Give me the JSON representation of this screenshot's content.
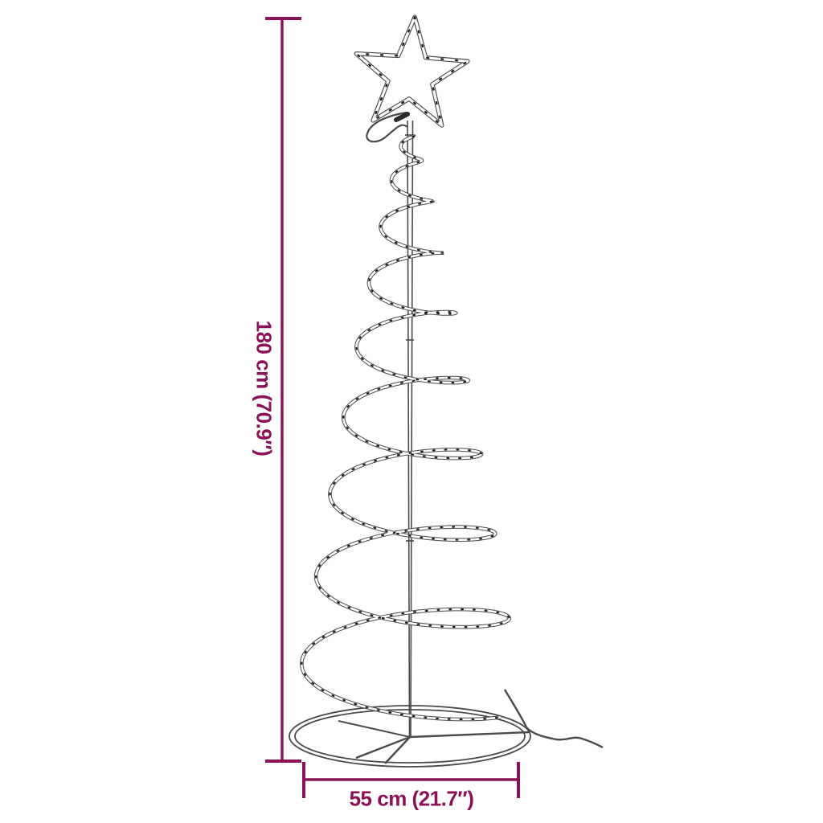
{
  "dimensions": {
    "height_label": "180 cm (70.9″)",
    "width_label": "55 cm (21.7″)"
  },
  "colors": {
    "dimension": "#8A1157",
    "line": "#4A4A4A",
    "led_dot": "#1F1F1F",
    "background": "#FFFFFF"
  },
  "icons": {
    "star_topper": "star-outline-icon",
    "light_rope": "spiral-rope-icon",
    "base": "ellipse-ring-icon",
    "power_cable": "cable-icon"
  }
}
